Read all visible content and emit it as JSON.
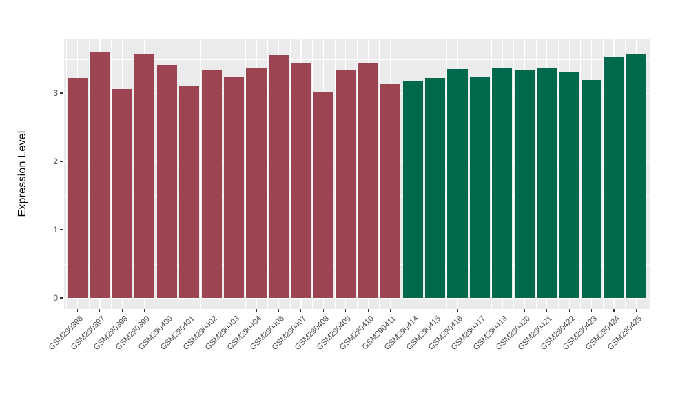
{
  "chart_data": {
    "type": "bar",
    "title": "",
    "xlabel": "",
    "ylabel": "Expression Level",
    "categories": [
      "GSM290396",
      "GSM290397",
      "GSM290398",
      "GSM290399",
      "GSM290400",
      "GSM290401",
      "GSM290402",
      "GSM290403",
      "GSM290404",
      "GSM290406",
      "GSM290407",
      "GSM290408",
      "GSM290409",
      "GSM290410",
      "GSM290411",
      "GSM290414",
      "GSM290415",
      "GSM290416",
      "GSM290417",
      "GSM290418",
      "GSM290420",
      "GSM290421",
      "GSM290422",
      "GSM290423",
      "GSM290424",
      "GSM290425"
    ],
    "values": [
      3.22,
      3.61,
      3.06,
      3.58,
      3.41,
      3.11,
      3.33,
      3.24,
      3.36,
      3.56,
      3.44,
      3.02,
      3.33,
      3.43,
      3.13,
      3.18,
      3.22,
      3.35,
      3.23,
      3.37,
      3.34,
      3.36,
      3.31,
      3.19,
      3.54,
      3.58
    ],
    "bar_groups": [
      0,
      0,
      0,
      0,
      0,
      0,
      0,
      0,
      0,
      0,
      0,
      0,
      0,
      0,
      0,
      1,
      1,
      1,
      1,
      1,
      1,
      1,
      1,
      1,
      1,
      1
    ],
    "group_colors": [
      "#9D4452",
      "#00694B"
    ],
    "yticks": [
      0,
      1,
      2,
      3
    ],
    "yticks_minor": [
      0.5,
      1.5,
      2.5,
      3.5
    ],
    "ylim": [
      -0.19,
      3.79
    ],
    "x_label_rotation_deg": 45,
    "legend": "none",
    "grid": "on",
    "panel_background": "#EBEBEB",
    "grid_color": "#FFFFFF",
    "axis_text_color": "#4D4D4D",
    "tick_color": "#333333"
  }
}
